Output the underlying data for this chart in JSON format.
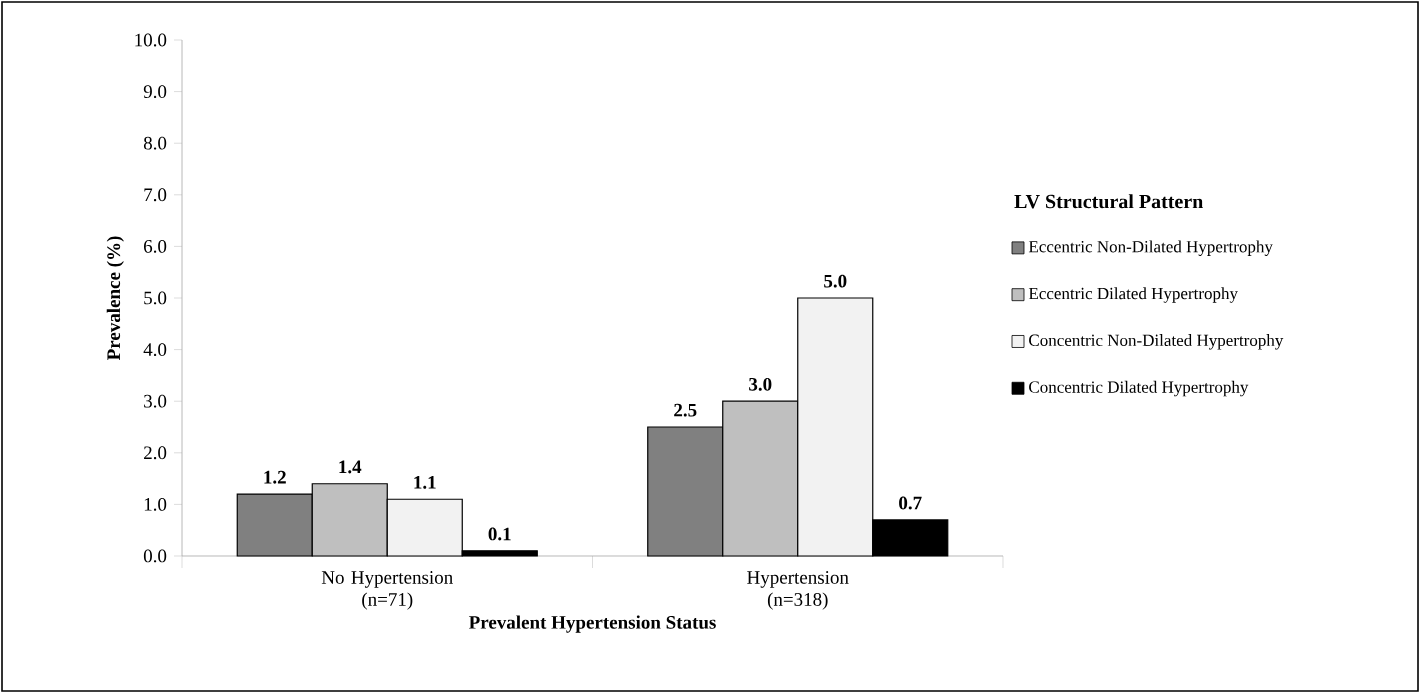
{
  "chart_data": {
    "type": "bar",
    "xlabel": "Prevalent Hypertension Status",
    "ylabel": "Prevalence (%)",
    "legend_title": "LV Structural Pattern",
    "categories": [
      "No Hypertension (n=71)",
      "Hypertension (n=318)"
    ],
    "series": [
      {
        "name": "Eccentric Non-Dilated Hypertrophy",
        "color": "#808080",
        "values": [
          1.2,
          2.5
        ],
        "value_labels": [
          "1.2",
          "2.5"
        ]
      },
      {
        "name": "Eccentric Dilated Hypertrophy",
        "color": "#bfbfbf",
        "values": [
          1.4,
          3.0
        ],
        "value_labels": [
          "1.4",
          "3.0"
        ]
      },
      {
        "name": "Concentric Non-Dilated Hypertrophy",
        "color": "#f2f2f2",
        "values": [
          1.1,
          5.0
        ],
        "value_labels": [
          "1.1",
          "5.0"
        ]
      },
      {
        "name": "Concentric Dilated Hypertrophy",
        "color": "#000000",
        "values": [
          0.1,
          0.7
        ],
        "value_labels": [
          "0.1",
          "0.7"
        ]
      }
    ],
    "ylim": [
      0,
      10
    ],
    "yticks": [
      {
        "value": 0,
        "label": "0.0"
      },
      {
        "value": 1,
        "label": "1.0"
      },
      {
        "value": 2,
        "label": "2.0"
      },
      {
        "value": 3,
        "label": "3.0"
      },
      {
        "value": 4,
        "label": "4.0"
      },
      {
        "value": 5,
        "label": "5.0"
      },
      {
        "value": 6,
        "label": "6.0"
      },
      {
        "value": 7,
        "label": "7.0"
      },
      {
        "value": 8,
        "label": "8.0"
      },
      {
        "value": 9,
        "label": "9.0"
      },
      {
        "value": 10,
        "label": "10.0"
      }
    ],
    "grid": false,
    "legend": "right"
  }
}
